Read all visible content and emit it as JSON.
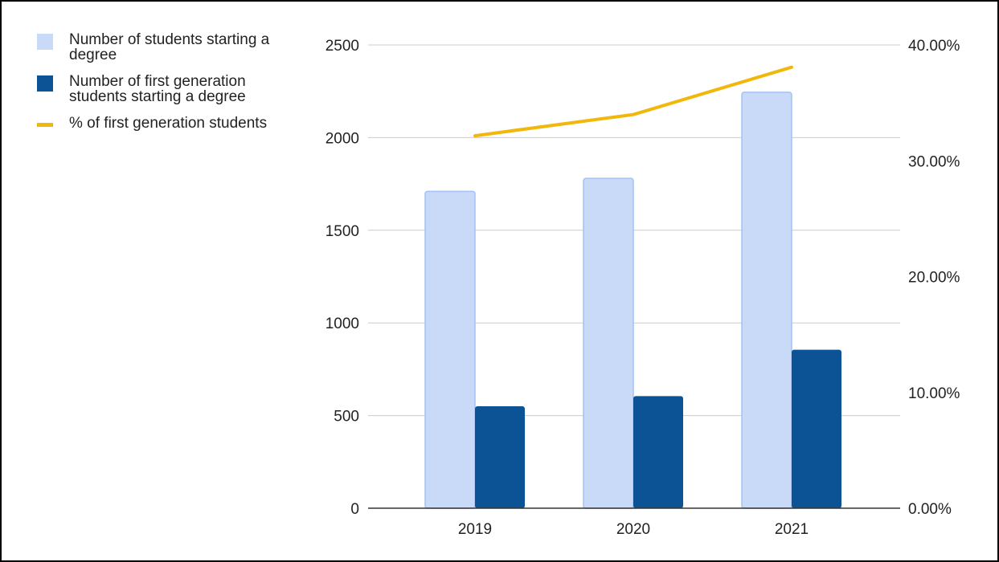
{
  "chart_data": {
    "type": "bar",
    "categories": [
      "2019",
      "2020",
      "2021"
    ],
    "series": [
      {
        "name": "Number of students starting a degree",
        "type": "bar",
        "axis": "left",
        "color": "#c9daf8",
        "stroke": "#a4c2f4",
        "values": [
          1710,
          1780,
          2245
        ]
      },
      {
        "name": "Number of first generation students starting a degree",
        "type": "bar",
        "axis": "left",
        "color": "#0b5394",
        "stroke": "#0b5394",
        "values": [
          550,
          605,
          855
        ]
      },
      {
        "name": "% of first generation students",
        "type": "line",
        "axis": "right",
        "color": "#f1b70a",
        "values": [
          0.3216,
          0.3399,
          0.3808
        ]
      }
    ],
    "y_left": {
      "min": 0,
      "max": 2500,
      "ticks": [
        0,
        500,
        1000,
        1500,
        2000,
        2500
      ]
    },
    "y_right": {
      "min": 0,
      "max": 0.4,
      "ticks": [
        0,
        0.1,
        0.2,
        0.3,
        0.4
      ],
      "tick_labels": [
        "0.00%",
        "10.00%",
        "20.00%",
        "30.00%",
        "40.00%"
      ]
    },
    "title": "",
    "xlabel": "",
    "ylabel": "",
    "grid": true,
    "legend_position": "top-left"
  }
}
